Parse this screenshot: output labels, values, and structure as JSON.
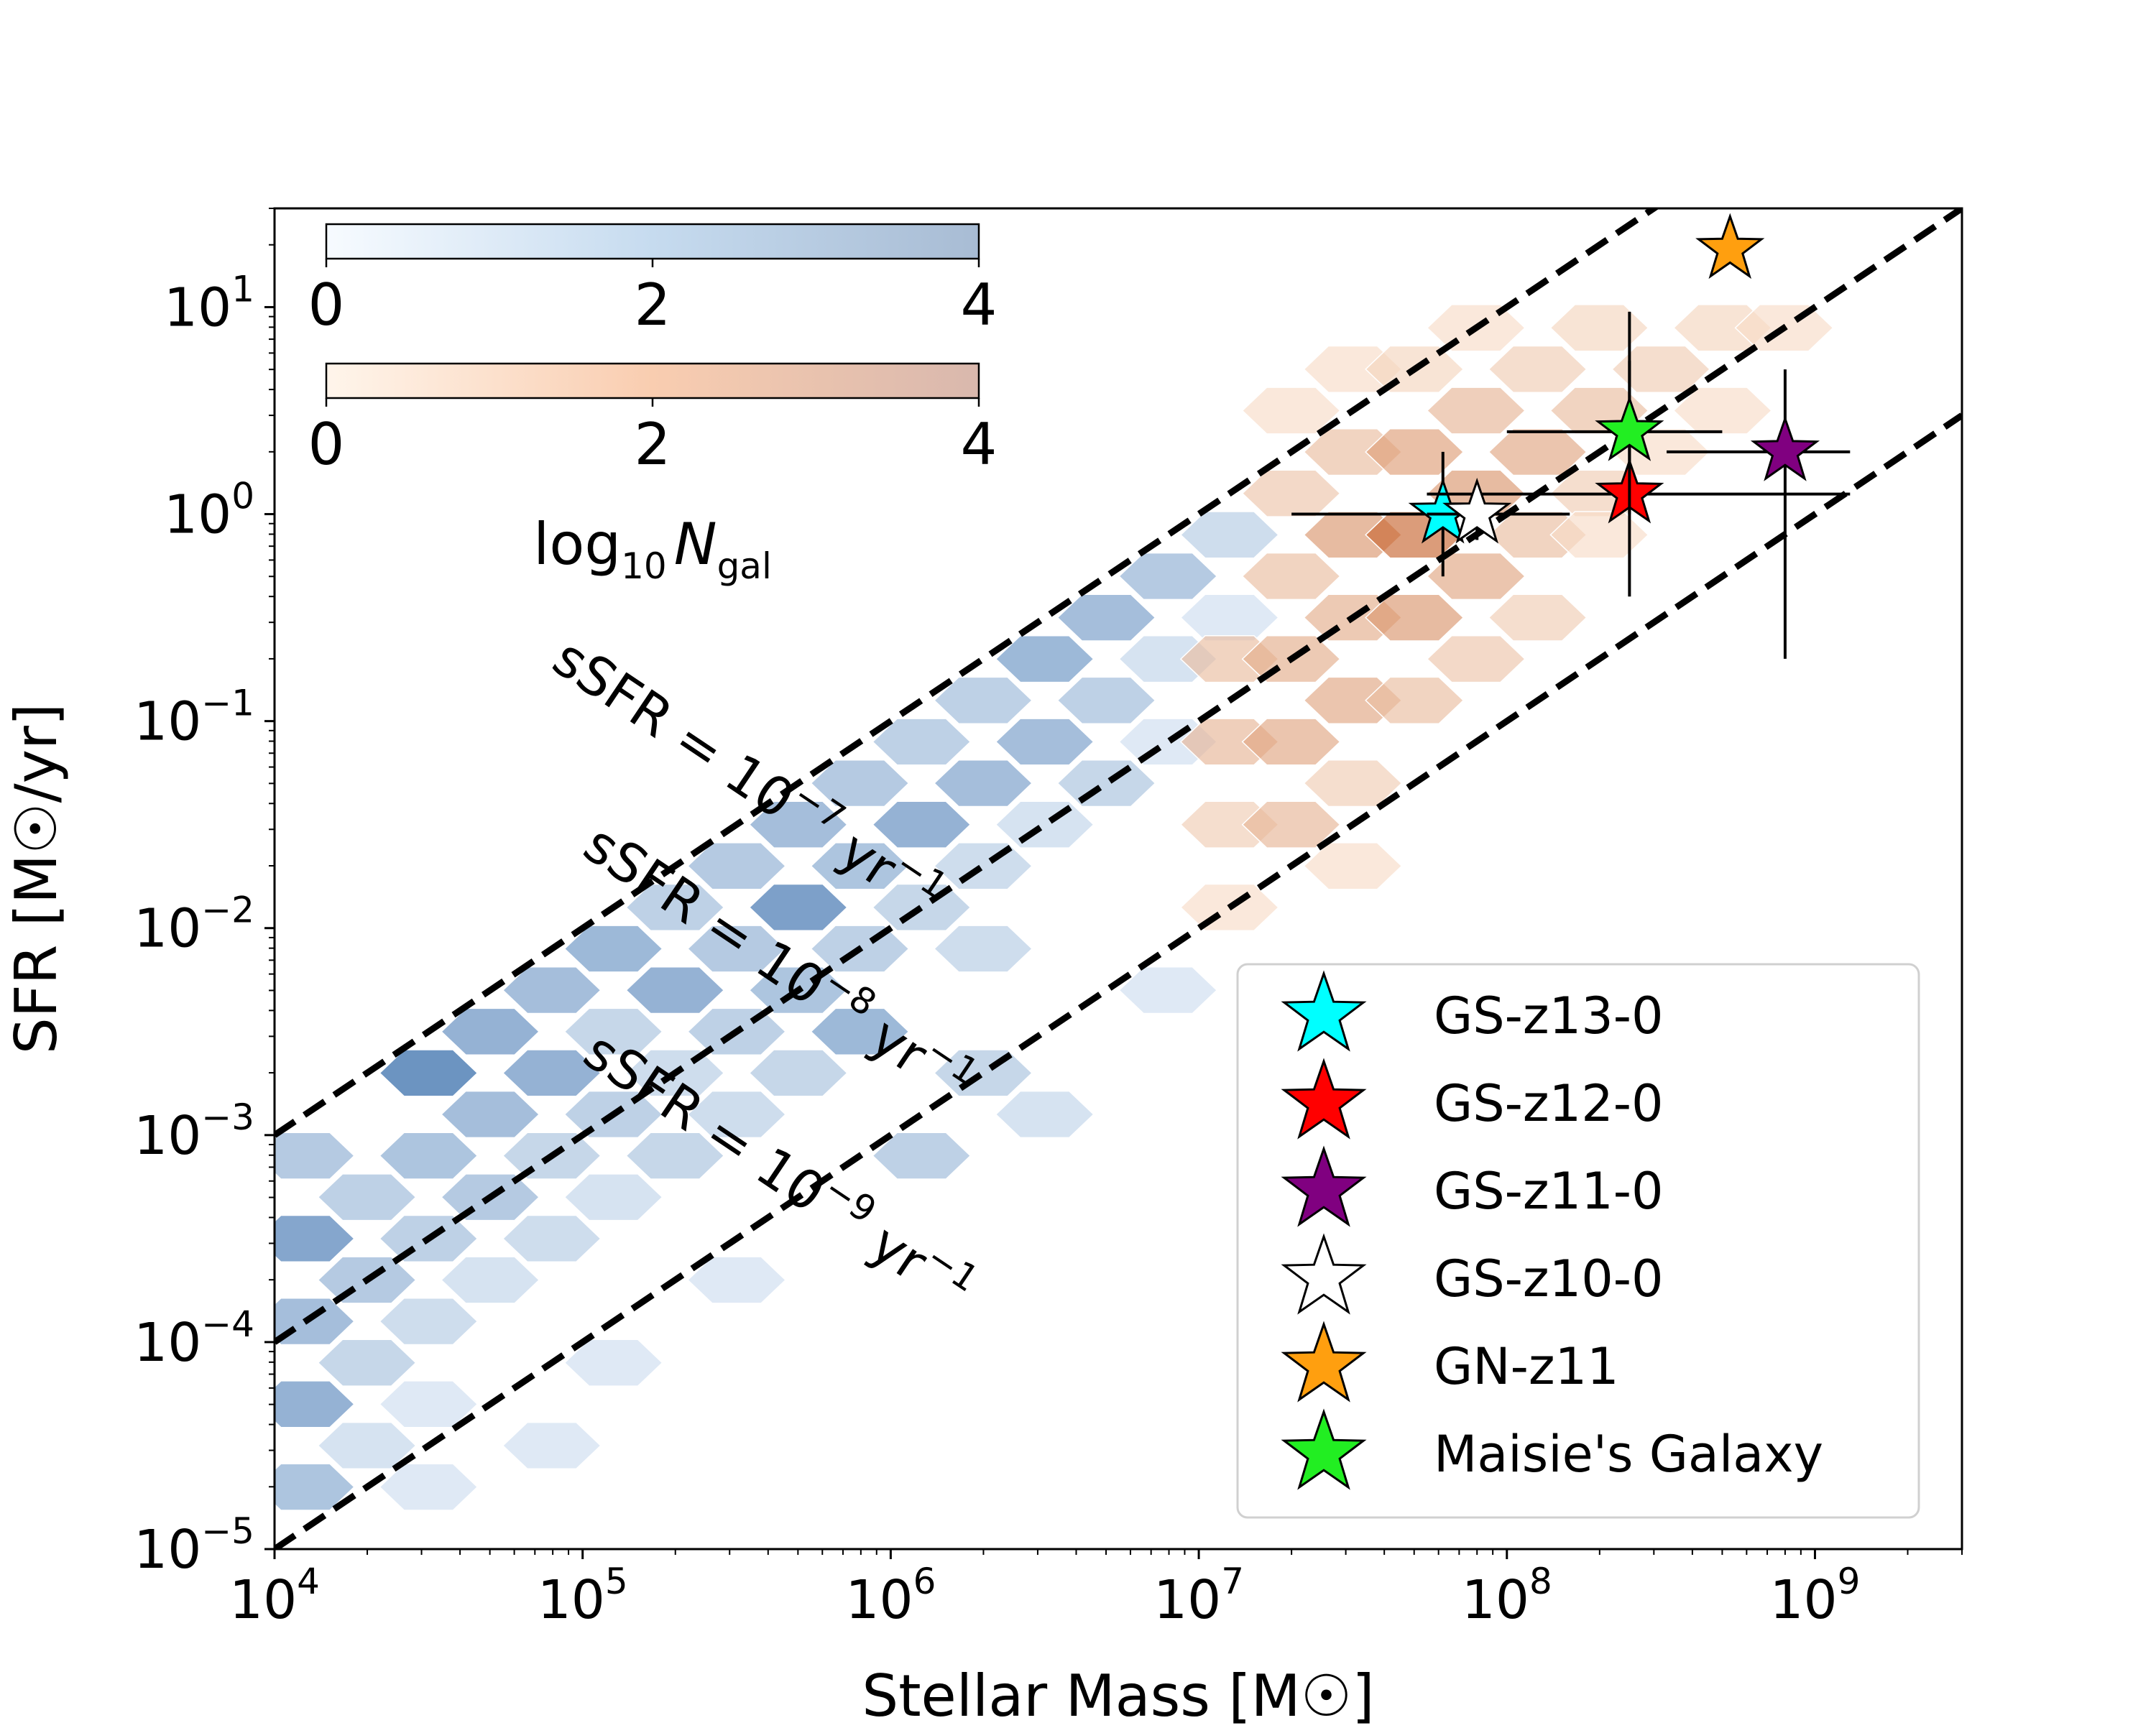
{
  "chart_data": {
    "type": "scatter",
    "xlabel": "Stellar Mass [M☉]",
    "ylabel": "SFR [M☉/yr]",
    "xscale": "log",
    "yscale": "log",
    "xlim": [
      10000,
      3000000000
    ],
    "ylim": [
      1e-05,
      30
    ],
    "x_ticks": [
      {
        "base": "10",
        "exp": "4",
        "value": 10000
      },
      {
        "base": "10",
        "exp": "5",
        "value": 100000
      },
      {
        "base": "10",
        "exp": "6",
        "value": 1000000
      },
      {
        "base": "10",
        "exp": "7",
        "value": 10000000
      },
      {
        "base": "10",
        "exp": "8",
        "value": 100000000
      },
      {
        "base": "10",
        "exp": "9",
        "value": 1000000000
      }
    ],
    "y_ticks": [
      {
        "base": "10",
        "exp": "−5",
        "value": 1e-05
      },
      {
        "base": "10",
        "exp": "−4",
        "value": 0.0001
      },
      {
        "base": "10",
        "exp": "−3",
        "value": 0.001
      },
      {
        "base": "10",
        "exp": "−2",
        "value": 0.01
      },
      {
        "base": "10",
        "exp": "−1",
        "value": 0.1
      },
      {
        "base": "10",
        "exp": "0",
        "value": 1
      },
      {
        "base": "10",
        "exp": "1",
        "value": 10
      }
    ],
    "ssfr_lines": [
      {
        "label": "sSFR = 10⁻⁷ yr⁻¹",
        "text": "sSFR = 10",
        "exp": "−7",
        "unit": " yr",
        "unit_exp": "−1",
        "ssfr": 1e-07
      },
      {
        "label": "sSFR = 10⁻⁸ yr⁻¹",
        "text": "sSFR = 10",
        "exp": "−8",
        "unit": " yr",
        "unit_exp": "−1",
        "ssfr": 1e-08
      },
      {
        "label": "sSFR = 10⁻⁹ yr⁻¹",
        "text": "sSFR = 10",
        "exp": "−9",
        "unit": " yr",
        "unit_exp": "−1",
        "ssfr": 1e-09
      }
    ],
    "colorbars": [
      {
        "cmap": "blue",
        "ticks": [
          "0",
          "2",
          "4"
        ],
        "range": [
          0,
          4
        ]
      },
      {
        "cmap": "orange",
        "ticks": [
          "0",
          "2",
          "4"
        ],
        "range": [
          0,
          4
        ]
      }
    ],
    "colorbar_label": {
      "text": "log",
      "sub": "10",
      "var": "N",
      "varsub": "gal"
    },
    "legend_position": "lower-right",
    "galaxies": [
      {
        "name": "GS-z13-0",
        "color": "#00ffff",
        "mass": 62000000,
        "mass_lo": 20000000,
        "mass_hi": 160000000,
        "sfr": 1.0,
        "sfr_lo": 0.5,
        "sfr_hi": 2.0
      },
      {
        "name": "GS-z12-0",
        "color": "#ff0000",
        "mass": 250000000,
        "mass_lo": 55000000,
        "mass_hi": 1300000000,
        "sfr": 1.25,
        "sfr_lo": 0.4,
        "sfr_hi": 9.5
      },
      {
        "name": "GS-z11-0",
        "color": "#800080",
        "mass": 800000000,
        "mass_lo": 330000000,
        "mass_hi": 1300000000,
        "sfr": 2.0,
        "sfr_lo": 0.2,
        "sfr_hi": 5.0
      },
      {
        "name": "GS-z10-0",
        "color": "#ffffff",
        "mass": 80000000,
        "mass_lo": 55000000,
        "mass_hi": 95000000,
        "sfr": 1.0,
        "sfr_lo": 0.75,
        "sfr_hi": 1.4
      },
      {
        "name": "GN-z11",
        "color": "#ff9f0f",
        "mass": 530000000,
        "mass_lo": null,
        "mass_hi": null,
        "sfr": 19,
        "sfr_lo": null,
        "sfr_hi": null
      },
      {
        "name": "Maisie's Galaxy",
        "color": "#22ee22",
        "mass": 250000000,
        "mass_lo": 100000000,
        "mass_hi": 500000000,
        "sfr": 2.5,
        "sfr_lo": 1.0,
        "sfr_hi": 5.5
      }
    ],
    "hexbins_blue": [
      {
        "logM": 4.1,
        "logS": -3.1,
        "d": 0.35
      },
      {
        "logM": 4.1,
        "logS": -3.5,
        "d": 0.65
      },
      {
        "logM": 4.1,
        "logS": -3.9,
        "d": 0.45
      },
      {
        "logM": 4.1,
        "logS": -4.3,
        "d": 0.55
      },
      {
        "logM": 4.3,
        "logS": -3.3,
        "d": 0.3
      },
      {
        "logM": 4.3,
        "logS": -3.7,
        "d": 0.35
      },
      {
        "logM": 4.3,
        "logS": -4.1,
        "d": 0.25
      },
      {
        "logM": 4.3,
        "logS": -4.5,
        "d": 0.15
      },
      {
        "logM": 4.5,
        "logS": -2.7,
        "d": 0.8
      },
      {
        "logM": 4.5,
        "logS": -3.1,
        "d": 0.4
      },
      {
        "logM": 4.5,
        "logS": -3.5,
        "d": 0.3
      },
      {
        "logM": 4.5,
        "logS": -3.9,
        "d": 0.2
      },
      {
        "logM": 4.5,
        "logS": -4.3,
        "d": 0.1
      },
      {
        "logM": 4.7,
        "logS": -2.5,
        "d": 0.55
      },
      {
        "logM": 4.7,
        "logS": -2.9,
        "d": 0.45
      },
      {
        "logM": 4.7,
        "logS": -3.3,
        "d": 0.35
      },
      {
        "logM": 4.7,
        "logS": -3.7,
        "d": 0.15
      },
      {
        "logM": 4.9,
        "logS": -2.3,
        "d": 0.45
      },
      {
        "logM": 4.9,
        "logS": -2.7,
        "d": 0.55
      },
      {
        "logM": 4.9,
        "logS": -3.1,
        "d": 0.25
      },
      {
        "logM": 4.9,
        "logS": -3.5,
        "d": 0.2
      },
      {
        "logM": 5.1,
        "logS": -2.1,
        "d": 0.5
      },
      {
        "logM": 5.1,
        "logS": -2.5,
        "d": 0.25
      },
      {
        "logM": 5.1,
        "logS": -2.9,
        "d": 0.3
      },
      {
        "logM": 5.1,
        "logS": -3.3,
        "d": 0.15
      },
      {
        "logM": 5.3,
        "logS": -1.9,
        "d": 0.3
      },
      {
        "logM": 5.3,
        "logS": -2.3,
        "d": 0.55
      },
      {
        "logM": 5.3,
        "logS": -2.7,
        "d": 0.2
      },
      {
        "logM": 5.3,
        "logS": -3.1,
        "d": 0.25
      },
      {
        "logM": 5.5,
        "logS": -1.7,
        "d": 0.35
      },
      {
        "logM": 5.5,
        "logS": -2.1,
        "d": 0.35
      },
      {
        "logM": 5.5,
        "logS": -2.5,
        "d": 0.3
      },
      {
        "logM": 5.5,
        "logS": -2.9,
        "d": 0.2
      },
      {
        "logM": 5.7,
        "logS": -1.5,
        "d": 0.45
      },
      {
        "logM": 5.7,
        "logS": -1.9,
        "d": 0.7
      },
      {
        "logM": 5.7,
        "logS": -2.3,
        "d": 0.4
      },
      {
        "logM": 5.7,
        "logS": -2.7,
        "d": 0.25
      },
      {
        "logM": 5.9,
        "logS": -1.3,
        "d": 0.35
      },
      {
        "logM": 5.9,
        "logS": -1.7,
        "d": 0.4
      },
      {
        "logM": 5.9,
        "logS": -2.1,
        "d": 0.3
      },
      {
        "logM": 5.9,
        "logS": -2.5,
        "d": 0.5
      },
      {
        "logM": 6.1,
        "logS": -1.1,
        "d": 0.3
      },
      {
        "logM": 6.1,
        "logS": -1.5,
        "d": 0.55
      },
      {
        "logM": 6.1,
        "logS": -1.9,
        "d": 0.25
      },
      {
        "logM": 6.3,
        "logS": -0.9,
        "d": 0.3
      },
      {
        "logM": 6.3,
        "logS": -1.3,
        "d": 0.45
      },
      {
        "logM": 6.3,
        "logS": -1.7,
        "d": 0.2
      },
      {
        "logM": 6.3,
        "logS": -2.1,
        "d": 0.2
      },
      {
        "logM": 6.3,
        "logS": -2.7,
        "d": 0.25
      },
      {
        "logM": 6.5,
        "logS": -0.7,
        "d": 0.5
      },
      {
        "logM": 6.5,
        "logS": -1.1,
        "d": 0.45
      },
      {
        "logM": 6.5,
        "logS": -1.5,
        "d": 0.15
      },
      {
        "logM": 6.7,
        "logS": -0.5,
        "d": 0.45
      },
      {
        "logM": 6.7,
        "logS": -0.9,
        "d": 0.3
      },
      {
        "logM": 6.7,
        "logS": -1.3,
        "d": 0.25
      },
      {
        "logM": 6.9,
        "logS": -0.3,
        "d": 0.35
      },
      {
        "logM": 6.9,
        "logS": -0.7,
        "d": 0.15
      },
      {
        "logM": 6.9,
        "logS": -1.1,
        "d": 0.1
      },
      {
        "logM": 7.1,
        "logS": -0.1,
        "d": 0.2
      },
      {
        "logM": 7.1,
        "logS": -0.5,
        "d": 0.1
      },
      {
        "logM": 5.1,
        "logS": -4.1,
        "d": 0.1
      },
      {
        "logM": 5.5,
        "logS": -3.7,
        "d": 0.1
      },
      {
        "logM": 6.1,
        "logS": -3.1,
        "d": 0.3
      },
      {
        "logM": 6.5,
        "logS": -2.9,
        "d": 0.15
      },
      {
        "logM": 6.9,
        "logS": -2.3,
        "d": 0.1
      },
      {
        "logM": 4.1,
        "logS": -4.7,
        "d": 0.4
      },
      {
        "logM": 4.5,
        "logS": -4.7,
        "d": 0.1
      },
      {
        "logM": 4.9,
        "logS": -4.5,
        "d": 0.1
      }
    ],
    "hexbins_orange": [
      {
        "logM": 7.1,
        "logS": -0.7,
        "d": 0.3
      },
      {
        "logM": 7.1,
        "logS": -1.1,
        "d": 0.35
      },
      {
        "logM": 7.1,
        "logS": -1.5,
        "d": 0.2
      },
      {
        "logM": 7.3,
        "logS": -0.3,
        "d": 0.3
      },
      {
        "logM": 7.3,
        "logS": -0.7,
        "d": 0.4
      },
      {
        "logM": 7.3,
        "logS": -1.1,
        "d": 0.45
      },
      {
        "logM": 7.3,
        "logS": -1.5,
        "d": 0.35
      },
      {
        "logM": 7.3,
        "logS": 0.1,
        "d": 0.25
      },
      {
        "logM": 7.3,
        "logS": 0.5,
        "d": 0.1
      },
      {
        "logM": 7.5,
        "logS": -0.1,
        "d": 0.55
      },
      {
        "logM": 7.5,
        "logS": -0.5,
        "d": 0.4
      },
      {
        "logM": 7.5,
        "logS": -0.9,
        "d": 0.45
      },
      {
        "logM": 7.5,
        "logS": 0.3,
        "d": 0.3
      },
      {
        "logM": 7.5,
        "logS": 0.7,
        "d": 0.1
      },
      {
        "logM": 7.5,
        "logS": -1.3,
        "d": 0.2
      },
      {
        "logM": 7.7,
        "logS": -0.1,
        "d": 0.85
      },
      {
        "logM": 7.7,
        "logS": 0.3,
        "d": 0.5
      },
      {
        "logM": 7.7,
        "logS": -0.5,
        "d": 0.55
      },
      {
        "logM": 7.7,
        "logS": -0.9,
        "d": 0.3
      },
      {
        "logM": 7.7,
        "logS": 0.7,
        "d": 0.15
      },
      {
        "logM": 7.9,
        "logS": 0.1,
        "d": 0.55
      },
      {
        "logM": 7.9,
        "logS": 0.5,
        "d": 0.35
      },
      {
        "logM": 7.9,
        "logS": -0.3,
        "d": 0.45
      },
      {
        "logM": 7.9,
        "logS": -0.7,
        "d": 0.25
      },
      {
        "logM": 7.9,
        "logS": 0.9,
        "d": 0.1
      },
      {
        "logM": 8.1,
        "logS": 0.3,
        "d": 0.45
      },
      {
        "logM": 8.1,
        "logS": 0.7,
        "d": 0.2
      },
      {
        "logM": 8.1,
        "logS": -0.1,
        "d": 0.3
      },
      {
        "logM": 8.1,
        "logS": -0.5,
        "d": 0.2
      },
      {
        "logM": 8.3,
        "logS": 0.5,
        "d": 0.3
      },
      {
        "logM": 8.3,
        "logS": 0.1,
        "d": 0.2
      },
      {
        "logM": 8.3,
        "logS": 0.9,
        "d": 0.15
      },
      {
        "logM": 8.5,
        "logS": 0.7,
        "d": 0.2
      },
      {
        "logM": 8.5,
        "logS": 0.3,
        "d": 0.1
      },
      {
        "logM": 8.7,
        "logS": 0.9,
        "d": 0.15
      },
      {
        "logM": 8.7,
        "logS": 0.5,
        "d": 0.1
      },
      {
        "logM": 8.9,
        "logS": 0.9,
        "d": 0.1
      },
      {
        "logM": 7.5,
        "logS": -1.7,
        "d": 0.1
      },
      {
        "logM": 7.1,
        "logS": -1.9,
        "d": 0.1
      },
      {
        "logM": 8.3,
        "logS": -0.1,
        "d": 0.1
      }
    ]
  }
}
